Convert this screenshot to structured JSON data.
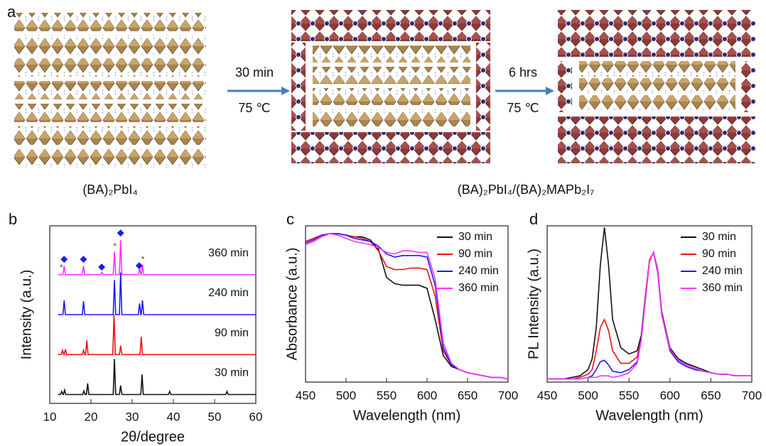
{
  "figure": {
    "panel_a": {
      "label": "a",
      "step1_time": "30 min",
      "step1_temp": "75 ℃",
      "step2_time": "6 hrs",
      "step2_temp": "75 ℃",
      "left_caption": "(BA)₂PbI₄",
      "right_caption": "(BA)₂PbI₄/(BA)₂MAPb₂I₇"
    }
  },
  "chart_data": [
    {
      "type": "line",
      "panel": "b",
      "x_label": "2θ/degree",
      "y_label": "Intensity (a.u.)",
      "xlim": [
        10,
        60
      ],
      "xticks": [
        10,
        20,
        30,
        40,
        50,
        60
      ],
      "ylim": [
        0,
        4
      ],
      "series": [
        {
          "name": "30 min",
          "color": "#111111",
          "x": [
            12,
            12.6,
            12.9,
            13.2,
            13.3,
            13.6,
            13.9,
            18,
            18.3,
            18.6,
            18.9,
            19.2,
            19.5,
            25.4,
            25.7,
            26,
            26.9,
            27.2,
            27.5,
            32.1,
            32.4,
            32.7,
            38.8,
            39.1,
            39.4,
            52.7,
            53,
            53.3,
            60
          ],
          "values": [
            0.2,
            0.2,
            0.27,
            0.2,
            0.2,
            0.3,
            0.2,
            0.2,
            0.28,
            0.2,
            0.2,
            0.45,
            0.2,
            0.2,
            1.0,
            0.2,
            0.2,
            0.4,
            0.2,
            0.2,
            0.65,
            0.2,
            0.2,
            0.27,
            0.2,
            0.2,
            0.27,
            0.2,
            0.2
          ]
        },
        {
          "name": "90 min",
          "color": "#f01010",
          "x": [
            12,
            12.8,
            13.1,
            13.4,
            13.5,
            13.8,
            14.1,
            17.9,
            18.2,
            18.5,
            18.7,
            19,
            19.3,
            25.3,
            25.6,
            25.9,
            26.9,
            27.2,
            27.5,
            31.9,
            32.2,
            32.5,
            60
          ],
          "values": [
            1.1,
            1.1,
            1.2,
            1.1,
            1.1,
            1.22,
            1.1,
            1.1,
            1.2,
            1.1,
            1.1,
            1.42,
            1.1,
            1.1,
            2.0,
            1.1,
            1.1,
            1.3,
            1.1,
            1.1,
            1.5,
            1.1,
            1.1
          ]
        },
        {
          "name": "240 min",
          "color": "#1a1aff",
          "x": [
            12,
            13.2,
            13.5,
            13.8,
            17.9,
            18.2,
            18.5,
            25.4,
            25.7,
            26,
            26.9,
            27.2,
            27.5,
            31.5,
            31.8,
            32.1,
            32.2,
            32.5,
            32.8,
            60
          ],
          "values": [
            2,
            2,
            2.32,
            2,
            2,
            2.3,
            2,
            2,
            2.78,
            2,
            2,
            2.95,
            2,
            2,
            2.25,
            2,
            2,
            2.32,
            2,
            2
          ]
        },
        {
          "name": "360 min",
          "color": "#ff33ff",
          "x": [
            12,
            13.2,
            13.5,
            13.8,
            17.9,
            18.2,
            18.5,
            22.4,
            22.7,
            23,
            25.4,
            25.7,
            26,
            26.9,
            27.2,
            27.5,
            31.5,
            31.8,
            32.1,
            32.2,
            32.5,
            32.8,
            60
          ],
          "values": [
            2.9,
            2.9,
            3.1,
            2.9,
            2.9,
            3.1,
            2.9,
            2.9,
            2.95,
            2.9,
            2.9,
            3.42,
            2.9,
            2.9,
            3.68,
            2.9,
            2.9,
            3.05,
            2.9,
            2.9,
            3.12,
            2.9,
            2.9
          ]
        }
      ],
      "annotations": [
        {
          "x": 13.5,
          "y": 3.25,
          "label": "◆",
          "color": "#1a1aff"
        },
        {
          "x": 18.2,
          "y": 3.25,
          "label": "◆",
          "color": "#1a1aff"
        },
        {
          "x": 22.6,
          "y": 3.07,
          "label": "◆",
          "color": "#1a1aff"
        },
        {
          "x": 27.2,
          "y": 3.84,
          "label": "◆",
          "color": "#1a1aff"
        },
        {
          "x": 31.7,
          "y": 3.1,
          "label": "◆",
          "color": "#1a1aff"
        },
        {
          "x": 12.8,
          "y": 3.05,
          "label": "*",
          "color": "#555555"
        },
        {
          "x": 25.8,
          "y": 3.53,
          "label": "*",
          "color": "#555555"
        },
        {
          "x": 32.6,
          "y": 3.23,
          "label": "*",
          "color": "#555555"
        }
      ]
    },
    {
      "type": "line",
      "panel": "c",
      "x_label": "Wavelength (nm)",
      "y_label": "Absorbance (a.u.)",
      "xlim": [
        450,
        700
      ],
      "xticks": [
        450,
        500,
        550,
        600,
        650,
        700
      ],
      "ylim": [
        0,
        1
      ],
      "legend": "upper right",
      "x": [
        450,
        460,
        470,
        480,
        490,
        500,
        510,
        520,
        530,
        540,
        550,
        560,
        570,
        580,
        590,
        600,
        610,
        620,
        630,
        640,
        650,
        660,
        670,
        680,
        690,
        700
      ],
      "series": [
        {
          "name": "30 min",
          "color": "#111111",
          "values": [
            0.9,
            0.92,
            0.94,
            0.95,
            0.95,
            0.94,
            0.93,
            0.93,
            0.91,
            0.85,
            0.67,
            0.63,
            0.62,
            0.62,
            0.62,
            0.6,
            0.4,
            0.17,
            0.1,
            0.08,
            0.06,
            0.05,
            0.04,
            0.03,
            0.03,
            0.02
          ]
        },
        {
          "name": "90 min",
          "color": "#f01010",
          "values": [
            0.9,
            0.92,
            0.94,
            0.95,
            0.95,
            0.94,
            0.93,
            0.92,
            0.9,
            0.84,
            0.74,
            0.72,
            0.72,
            0.73,
            0.73,
            0.72,
            0.55,
            0.2,
            0.11,
            0.08,
            0.06,
            0.05,
            0.04,
            0.03,
            0.03,
            0.02
          ]
        },
        {
          "name": "240 min",
          "color": "#1a1aff",
          "values": [
            0.89,
            0.91,
            0.94,
            0.95,
            0.95,
            0.94,
            0.92,
            0.91,
            0.9,
            0.87,
            0.82,
            0.8,
            0.81,
            0.81,
            0.81,
            0.8,
            0.62,
            0.22,
            0.11,
            0.08,
            0.06,
            0.05,
            0.04,
            0.03,
            0.03,
            0.02
          ]
        },
        {
          "name": "360 min",
          "color": "#ff33ff",
          "values": [
            0.88,
            0.9,
            0.93,
            0.95,
            0.94,
            0.92,
            0.9,
            0.89,
            0.88,
            0.86,
            0.83,
            0.82,
            0.84,
            0.84,
            0.83,
            0.83,
            0.66,
            0.25,
            0.12,
            0.08,
            0.06,
            0.05,
            0.04,
            0.03,
            0.03,
            0.02
          ]
        }
      ]
    },
    {
      "type": "line",
      "panel": "d",
      "x_label": "Wavelength (nm)",
      "y_label": "PL Intensity (a.u.)",
      "xlim": [
        450,
        700
      ],
      "xticks": [
        450,
        500,
        550,
        600,
        650,
        700
      ],
      "ylim": [
        0,
        1
      ],
      "legend": "upper right",
      "x": [
        450,
        460,
        470,
        480,
        490,
        500,
        505,
        510,
        515,
        520,
        525,
        530,
        540,
        550,
        560,
        565,
        570,
        575,
        580,
        585,
        590,
        600,
        610,
        620,
        630,
        640,
        650,
        660,
        670,
        680,
        690,
        700
      ],
      "series": [
        {
          "name": "30 min",
          "color": "#111111",
          "values": [
            0.02,
            0.02,
            0.02,
            0.03,
            0.04,
            0.08,
            0.15,
            0.35,
            0.75,
            0.99,
            0.75,
            0.4,
            0.22,
            0.18,
            0.2,
            0.3,
            0.55,
            0.78,
            0.83,
            0.72,
            0.45,
            0.22,
            0.15,
            0.12,
            0.1,
            0.08,
            0.06,
            0.05,
            0.05,
            0.04,
            0.04,
            0.04
          ]
        },
        {
          "name": "90 min",
          "color": "#f01010",
          "values": [
            0.02,
            0.02,
            0.02,
            0.02,
            0.03,
            0.05,
            0.08,
            0.2,
            0.35,
            0.4,
            0.33,
            0.2,
            0.12,
            0.12,
            0.16,
            0.28,
            0.54,
            0.78,
            0.83,
            0.71,
            0.44,
            0.21,
            0.14,
            0.11,
            0.09,
            0.07,
            0.06,
            0.05,
            0.05,
            0.04,
            0.04,
            0.04
          ]
        },
        {
          "name": "240 min",
          "color": "#1a1aff",
          "values": [
            0.02,
            0.02,
            0.02,
            0.02,
            0.02,
            0.03,
            0.04,
            0.08,
            0.13,
            0.14,
            0.11,
            0.07,
            0.06,
            0.08,
            0.13,
            0.28,
            0.53,
            0.77,
            0.83,
            0.7,
            0.43,
            0.2,
            0.13,
            0.1,
            0.08,
            0.07,
            0.06,
            0.05,
            0.05,
            0.04,
            0.04,
            0.04
          ]
        },
        {
          "name": "360 min",
          "color": "#ff33ff",
          "values": [
            0.02,
            0.02,
            0.02,
            0.02,
            0.02,
            0.03,
            0.03,
            0.03,
            0.04,
            0.04,
            0.04,
            0.03,
            0.04,
            0.06,
            0.12,
            0.27,
            0.52,
            0.77,
            0.83,
            0.7,
            0.43,
            0.21,
            0.14,
            0.11,
            0.09,
            0.07,
            0.06,
            0.05,
            0.05,
            0.04,
            0.04,
            0.04
          ]
        }
      ]
    }
  ]
}
